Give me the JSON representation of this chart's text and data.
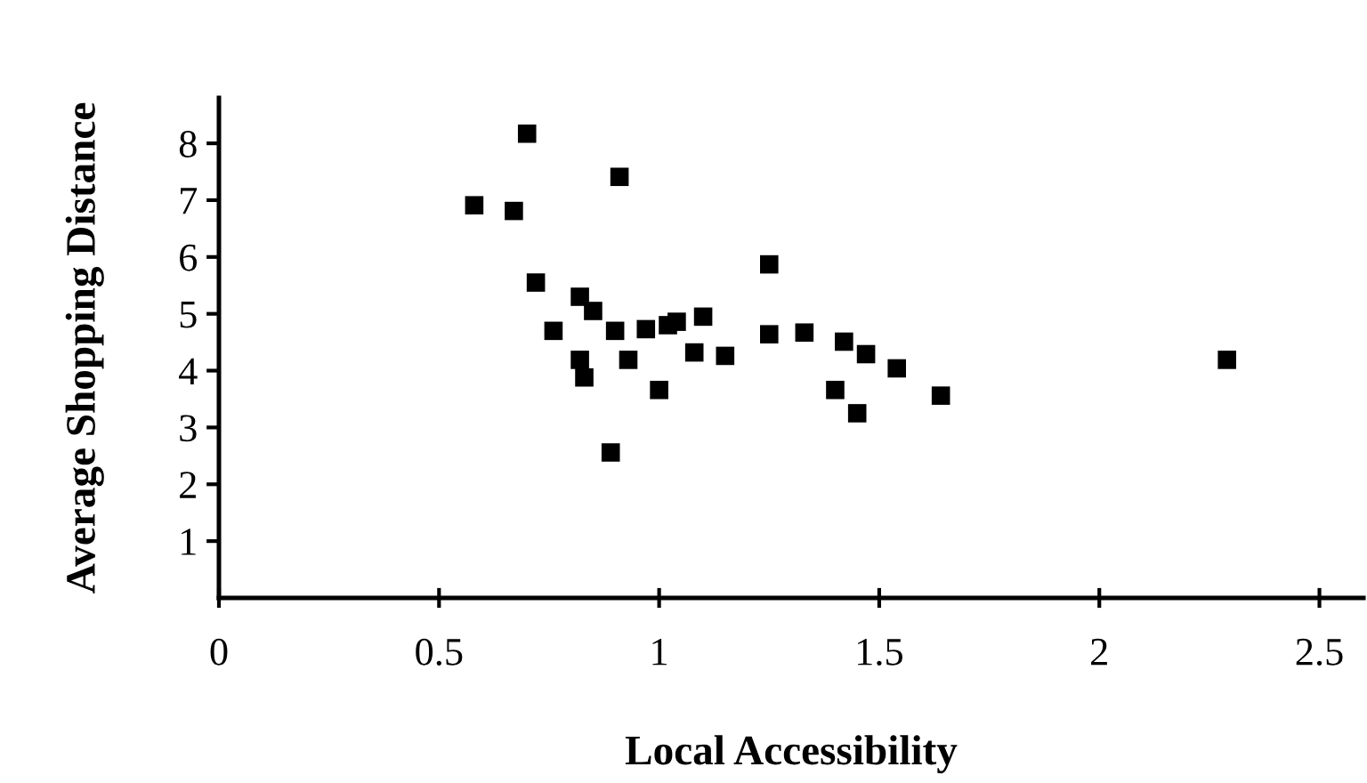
{
  "chart_data": {
    "type": "scatter",
    "xlabel": "Local Accessibility",
    "ylabel": "Average Shopping Distance",
    "x": [
      0.7,
      0.91,
      0.58,
      0.67,
      1.25,
      0.72,
      0.82,
      0.85,
      0.76,
      0.9,
      0.97,
      1.02,
      1.04,
      1.1,
      1.25,
      0.82,
      0.83,
      0.93,
      1.08,
      1.15,
      1.0,
      0.89,
      1.33,
      1.42,
      1.47,
      1.54,
      1.4,
      1.45,
      1.64,
      2.29
    ],
    "values": [
      8.17,
      7.41,
      6.91,
      6.81,
      5.87,
      5.55,
      5.3,
      5.05,
      4.7,
      4.7,
      4.73,
      4.8,
      4.86,
      4.95,
      4.64,
      4.19,
      3.88,
      4.19,
      4.32,
      4.26,
      3.66,
      2.56,
      4.67,
      4.51,
      4.29,
      4.04,
      3.66,
      3.25,
      3.56,
      4.19
    ],
    "color": "#000000",
    "marker": "square",
    "xlim": [
      0,
      2.6
    ],
    "ylim": [
      0,
      8.8
    ],
    "xticks": [
      0,
      0.5,
      1,
      1.5,
      2,
      2.5
    ],
    "yticks": [
      1,
      2,
      3,
      4,
      5,
      6,
      7,
      8
    ],
    "grid": false
  }
}
